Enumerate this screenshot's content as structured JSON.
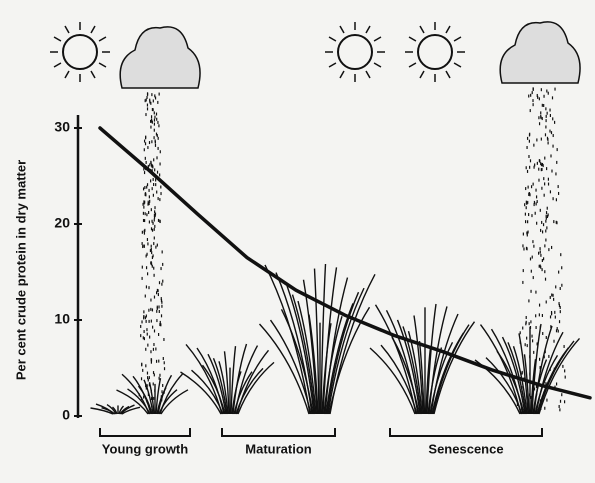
{
  "chart_data": {
    "type": "line",
    "y_label": "Per cent crude protein in dry matter",
    "categories": [
      null,
      null,
      null,
      null,
      null,
      null,
      null,
      null,
      null,
      null,
      null
    ],
    "values": [
      30,
      25.6,
      21,
      16.5,
      13.1,
      10.5,
      8.4,
      6.7,
      4.8,
      3.2,
      1.9
    ],
    "color": "#111111",
    "ylim": [
      0,
      31
    ],
    "yticks": [
      0,
      10,
      20,
      30
    ],
    "stages": [
      "Young growth",
      "Maturation",
      "Senescence"
    ]
  }
}
